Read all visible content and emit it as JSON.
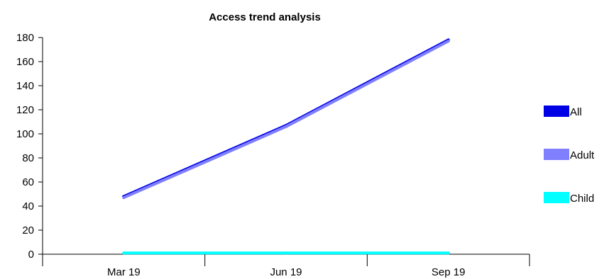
{
  "chart_data": {
    "type": "line",
    "title": "Access trend analysis",
    "xlabel": "",
    "ylabel": "",
    "categories": [
      "Mar 19",
      "Jun 19",
      "Sep 19"
    ],
    "ylim": [
      0,
      180
    ],
    "yticks": [
      0,
      20,
      40,
      60,
      80,
      100,
      120,
      140,
      160,
      180
    ],
    "grid": false,
    "legend_position": "right",
    "series": [
      {
        "name": "All",
        "values": [
          48,
          107,
          178
        ],
        "color": "#0000e6"
      },
      {
        "name": "Adult",
        "values": [
          47,
          106,
          177
        ],
        "color": "#8080ff"
      },
      {
        "name": "Child",
        "values": [
          1,
          1,
          1
        ],
        "color": "#00ffff"
      }
    ]
  }
}
